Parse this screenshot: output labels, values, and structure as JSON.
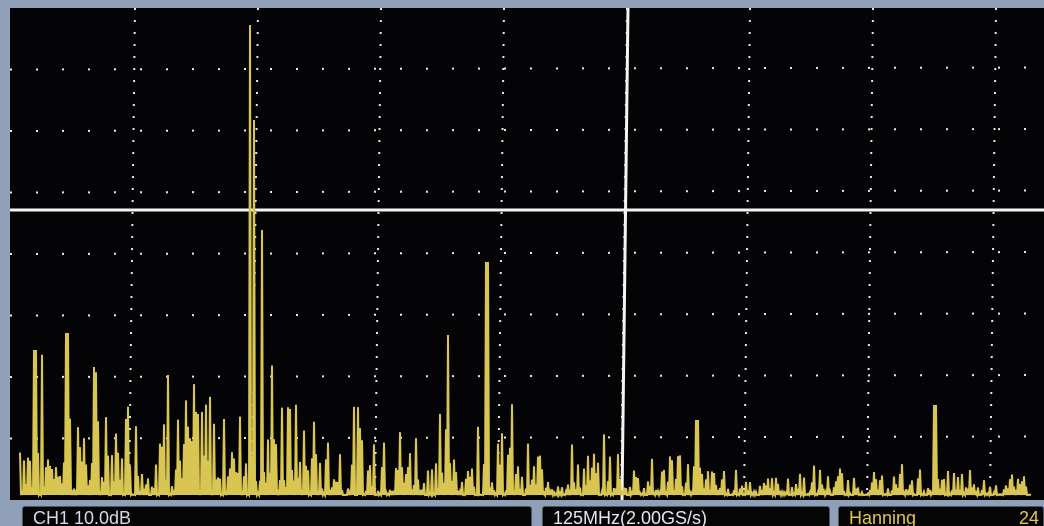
{
  "status_bar": {
    "channel": "CH1 10.0dB",
    "sample_rate": "125MHz(2.00GS/s)",
    "window": "Hanning",
    "extra": "24"
  }
}
